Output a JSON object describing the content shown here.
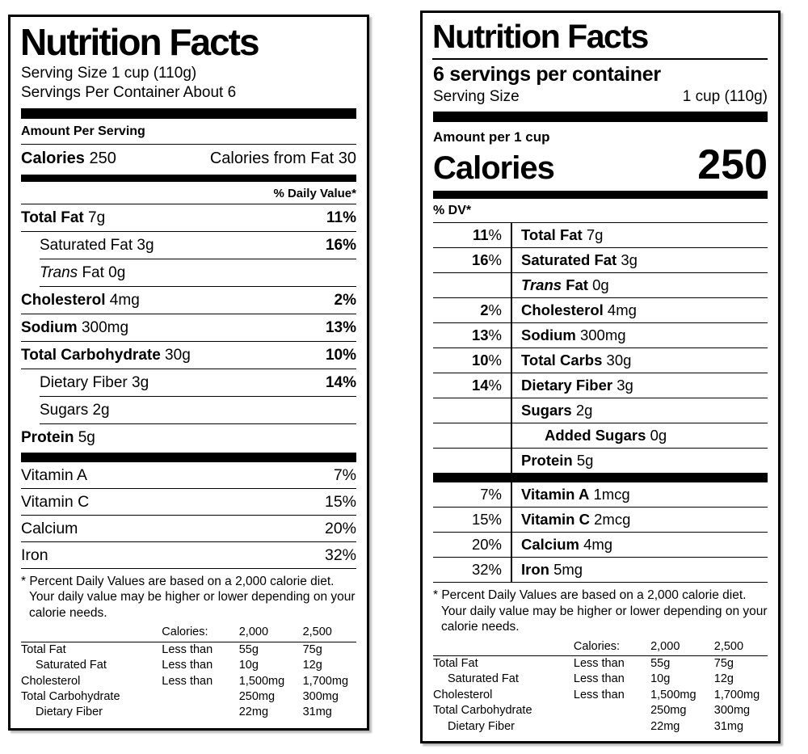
{
  "left_label": {
    "title": "Nutrition Facts",
    "serving_size": "Serving Size 1 cup (110g)",
    "servings_per_container": "Servings Per Container About 6",
    "amount_per_serving": "Amount Per Serving",
    "calories_label": "Calories",
    "calories_value": "250",
    "calories_from_fat": "Calories from Fat 30",
    "daily_value_header": "% Daily Value*",
    "rows": [
      {
        "name": "Total Fat",
        "amount": " 7g",
        "dv": "11%"
      },
      {
        "name": "Saturated Fat",
        "amount": " 3g",
        "dv": "16%"
      },
      {
        "pre": "Trans",
        "name": " Fat",
        "amount": " 0g",
        "dv": ""
      },
      {
        "name": "Cholesterol",
        "amount": " 4mg",
        "dv": "2%"
      },
      {
        "name": "Sodium",
        "amount": " 300mg",
        "dv": "13%"
      },
      {
        "name": "Total Carbohydrate",
        "amount": " 30g",
        "dv": "10%"
      },
      {
        "name": "Dietary Fiber",
        "amount": " 3g",
        "dv": "14%"
      },
      {
        "name": "Sugars",
        "amount": " 2g",
        "dv": ""
      },
      {
        "name": "Protein",
        "amount": " 5g",
        "dv": ""
      }
    ],
    "vitamins": [
      {
        "name": "Vitamin A",
        "dv": "7%"
      },
      {
        "name": "Vitamin C",
        "dv": "15%"
      },
      {
        "name": "Calcium",
        "dv": "20%"
      },
      {
        "name": "Iron",
        "dv": "32%"
      }
    ],
    "footnote": "* Percent Daily Values are based on a 2,000 calorie diet. Your daily value may be higher or lower depending on your calorie needs.",
    "dv_table": {
      "header": [
        "Calories:",
        "2,000",
        "2,500"
      ],
      "rows": [
        {
          "label": "Total Fat",
          "cond": "Less than",
          "v2000": "55g",
          "v2500": "75g"
        },
        {
          "label": "Saturated Fat",
          "cond": "Less than",
          "v2000": "10g",
          "v2500": "12g"
        },
        {
          "label": "Cholesterol",
          "cond": "Less than",
          "v2000": "1,500mg",
          "v2500": "1,700mg"
        },
        {
          "label": "Total Carbohydrate",
          "cond": "",
          "v2000": "250mg",
          "v2500": "300mg"
        },
        {
          "label": "Dietary Fiber",
          "cond": "",
          "v2000": "22mg",
          "v2500": "31mg"
        }
      ]
    }
  },
  "right_label": {
    "title": "Nutrition Facts",
    "servings_per_container": "6 servings per container",
    "serving_size_label": "Serving Size",
    "serving_size_value": "1 cup (110g)",
    "amount_per": "Amount per 1 cup",
    "calories_label": "Calories",
    "calories_value": "250",
    "daily_value_header": "% DV*",
    "percent_sign": "%",
    "rows": [
      {
        "dv": "11",
        "name": "Total Fat",
        "amount": "7g"
      },
      {
        "dv": "16",
        "name": "Saturated Fat",
        "amount": "3g"
      },
      {
        "dv": "",
        "pre": "Trans",
        "name": "Fat",
        "amount": "0g"
      },
      {
        "dv": "2",
        "name": "Cholesterol",
        "amount": "4mg"
      },
      {
        "dv": "13",
        "name": "Sodium",
        "amount": "300mg"
      },
      {
        "dv": "10",
        "name": "Total Carbs",
        "amount": "30g"
      },
      {
        "dv": "14",
        "name": "Dietary Fiber",
        "amount": "3g"
      },
      {
        "dv": "",
        "name": "Sugars",
        "amount": "2g"
      },
      {
        "dv": "",
        "name": "Added Sugars",
        "amount": "0g"
      },
      {
        "dv": "",
        "name": "Protein",
        "amount": "5g"
      }
    ],
    "vitamins": [
      {
        "dv": "7",
        "name": "Vitamin A",
        "amount": "1mcg"
      },
      {
        "dv": "15",
        "name": "Vitamin C",
        "amount": "2mcg"
      },
      {
        "dv": "20",
        "name": "Calcium",
        "amount": "4mg"
      },
      {
        "dv": "32",
        "name": "Iron",
        "amount": "5mg"
      }
    ],
    "footnote": "* Percent Daily Values are based on a 2,000 calorie diet. Your daily value may be higher or lower depending on your calorie needs.",
    "dv_table": {
      "header": [
        "Calories:",
        "2,000",
        "2,500"
      ],
      "rows": [
        {
          "label": "Total Fat",
          "cond": "Less than",
          "v2000": "55g",
          "v2500": "75g"
        },
        {
          "label": "Saturated Fat",
          "cond": "Less than",
          "v2000": "10g",
          "v2500": "12g"
        },
        {
          "label": "Cholesterol",
          "cond": "Less than",
          "v2000": "1,500mg",
          "v2500": "1,700mg"
        },
        {
          "label": "Total Carbohydrate",
          "cond": "",
          "v2000": "250mg",
          "v2500": "300mg"
        },
        {
          "label": "Dietary Fiber",
          "cond": "",
          "v2000": "22mg",
          "v2500": "31mg"
        }
      ]
    }
  }
}
